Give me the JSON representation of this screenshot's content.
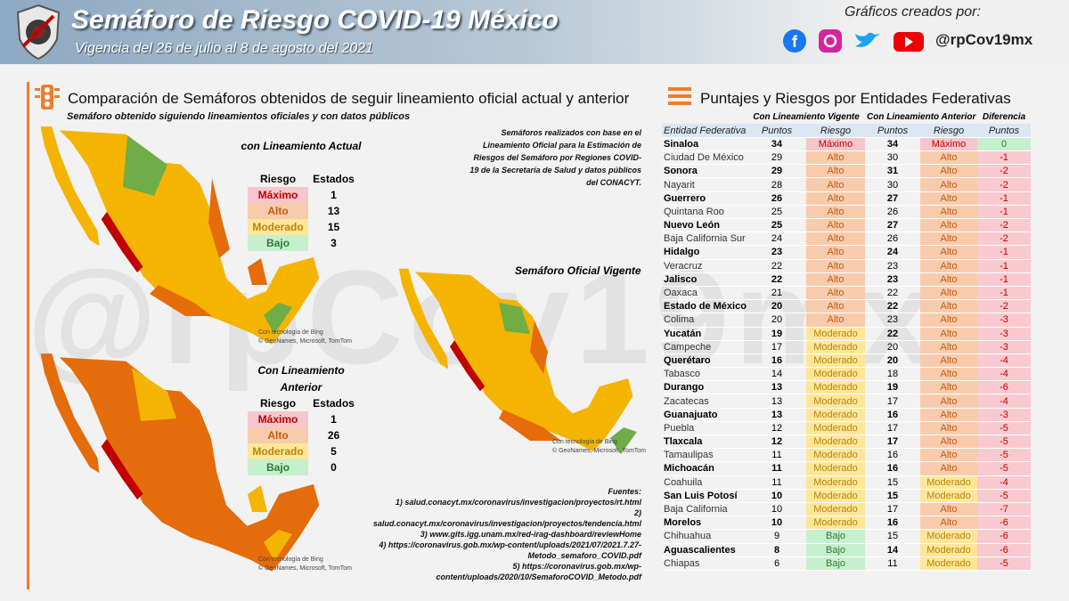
{
  "header": {
    "title": "Semáforo de Riesgo COVID-19 México",
    "subtitle": "Vigencia del 26 de julio al 8 de agosto del 2021",
    "credits": "Gráficos creados por:",
    "handle": "@rpCov19mx"
  },
  "left": {
    "heading": "Comparación de Semáforos obtenidos de seguir lineamiento oficial actual y anterior",
    "subheading": "Semáforo obtenido siguiendo lineamientos oficiales y con datos públicos",
    "note": "Semáforos realizados con base en el Lineamiento Oficial para la Estimación de Riesgos del Semáforo por Regiones COVID-19 de la Secretaría de Salud y datos públicos del CONACYT.",
    "official_map_title": "Semáforo Oficial Vigente",
    "map_credit_1": "Con tecnología de Bing",
    "map_credit_2": "© GeoNames, Microsoft, TomTom",
    "summary_current": {
      "title": "con Lineamiento Actual",
      "headers": [
        "Riesgo",
        "Estados"
      ],
      "rows": [
        [
          "Máximo",
          1
        ],
        [
          "Alto",
          13
        ],
        [
          "Moderado",
          15
        ],
        [
          "Bajo",
          3
        ]
      ]
    },
    "summary_previous": {
      "title": "Con Lineamiento Anterior",
      "headers": [
        "Riesgo",
        "Estados"
      ],
      "rows": [
        [
          "Máximo",
          1
        ],
        [
          "Alto",
          26
        ],
        [
          "Moderado",
          5
        ],
        [
          "Bajo",
          0
        ]
      ]
    },
    "sources_title": "Fuentes:",
    "sources": [
      "1) salud.conacyt.mx/coronavirus/investigacion/proyectos/rt.html",
      "2) salud.conacyt.mx/coronavirus/investigacion/proyectos/tendencia.html",
      "3) www.gits.igg.unam.mx/red-irag-dashboard/reviewHome",
      "4) https://coronavirus.gob.mx/wp-content/uploads/2021/07/2021.7.27-Metodo_semaforo_COVID.pdf",
      "5) https://coronavirus.gob.mx/wp-content/uploads/2020/10/SemaforoCOVID_Metodo.pdf"
    ]
  },
  "right": {
    "heading": "Puntajes y Riesgos por Entidades Federativas",
    "group_headers": [
      "Con Lineamiento Vigente",
      "Con Lineamiento Anterior",
      "Diferencia"
    ],
    "columns": [
      "Entidad Federativa",
      "Puntos",
      "Riesgo",
      "Puntos",
      "Riesgo",
      "Puntos"
    ],
    "rows": [
      [
        "Sinaloa",
        34,
        "Máximo",
        34,
        "Máximo",
        0
      ],
      [
        "Ciudad De México",
        29,
        "Alto",
        30,
        "Alto",
        -1
      ],
      [
        "Sonora",
        29,
        "Alto",
        31,
        "Alto",
        -2
      ],
      [
        "Nayarit",
        28,
        "Alto",
        30,
        "Alto",
        -2
      ],
      [
        "Guerrero",
        26,
        "Alto",
        27,
        "Alto",
        -1
      ],
      [
        "Quintana Roo",
        25,
        "Alto",
        26,
        "Alto",
        -1
      ],
      [
        "Nuevo León",
        25,
        "Alto",
        27,
        "Alto",
        -2
      ],
      [
        "Baja California Sur",
        24,
        "Alto",
        26,
        "Alto",
        -2
      ],
      [
        "Hidalgo",
        23,
        "Alto",
        24,
        "Alto",
        -1
      ],
      [
        "Veracruz",
        22,
        "Alto",
        23,
        "Alto",
        -1
      ],
      [
        "Jalisco",
        22,
        "Alto",
        23,
        "Alto",
        -1
      ],
      [
        "Oaxaca",
        21,
        "Alto",
        22,
        "Alto",
        -1
      ],
      [
        "Estado de México",
        20,
        "Alto",
        22,
        "Alto",
        -2
      ],
      [
        "Colima",
        20,
        "Alto",
        23,
        "Alto",
        -3
      ],
      [
        "Yucatán",
        19,
        "Moderado",
        22,
        "Alto",
        -3
      ],
      [
        "Campeche",
        17,
        "Moderado",
        20,
        "Alto",
        -3
      ],
      [
        "Querétaro",
        16,
        "Moderado",
        20,
        "Alto",
        -4
      ],
      [
        "Tabasco",
        14,
        "Moderado",
        18,
        "Alto",
        -4
      ],
      [
        "Durango",
        13,
        "Moderado",
        19,
        "Alto",
        -6
      ],
      [
        "Zacatecas",
        13,
        "Moderado",
        17,
        "Alto",
        -4
      ],
      [
        "Guanajuato",
        13,
        "Moderado",
        16,
        "Alto",
        -3
      ],
      [
        "Puebla",
        12,
        "Moderado",
        17,
        "Alto",
        -5
      ],
      [
        "Tlaxcala",
        12,
        "Moderado",
        17,
        "Alto",
        -5
      ],
      [
        "Tamaulipas",
        11,
        "Moderado",
        16,
        "Alto",
        -5
      ],
      [
        "Michoacán",
        11,
        "Moderado",
        16,
        "Alto",
        -5
      ],
      [
        "Coahuila",
        11,
        "Moderado",
        15,
        "Moderado",
        -4
      ],
      [
        "San Luis Potosí",
        10,
        "Moderado",
        15,
        "Moderado",
        -5
      ],
      [
        "Baja California",
        10,
        "Moderado",
        17,
        "Alto",
        -7
      ],
      [
        "Morelos",
        10,
        "Moderado",
        16,
        "Alto",
        -6
      ],
      [
        "Chihuahua",
        9,
        "Bajo",
        15,
        "Moderado",
        -6
      ],
      [
        "Aguascalientes",
        8,
        "Bajo",
        14,
        "Moderado",
        -6
      ],
      [
        "Chiapas",
        6,
        "Bajo",
        11,
        "Moderado",
        -5
      ]
    ]
  }
}
